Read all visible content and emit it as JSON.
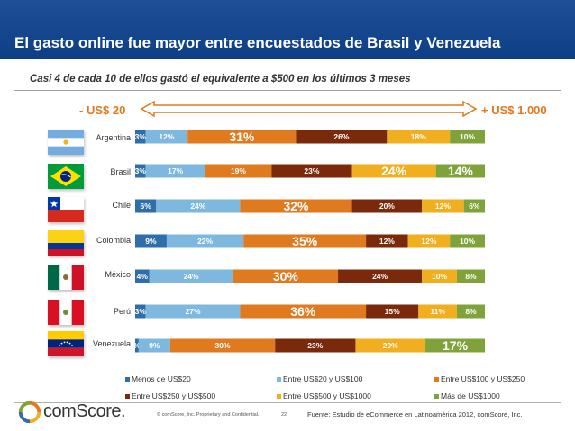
{
  "title": "El gasto online fue mayor entre encuestados de Brasil y Venezuela",
  "subtitle": "Casi 4 de cada 10 de ellos gastó el equivalente a $500 en los últimos 3 meses",
  "range": {
    "left_label": "- US$ 20",
    "right_label": "+ US$ 1.000"
  },
  "colors": {
    "header": "#1a4b93",
    "accent": "#e07a1f",
    "series": [
      "#2f6ea8",
      "#7fb8df",
      "#e07a1f",
      "#7a2a0a",
      "#f1ae1f",
      "#7fa33a"
    ]
  },
  "chart_data": {
    "type": "bar",
    "orientation": "horizontal",
    "stacked": true,
    "percent_scale": true,
    "categories": [
      "Argentina",
      "Brasil",
      "Chile",
      "Colombia",
      "México",
      "Perú",
      "Venezuela"
    ],
    "series": [
      {
        "name": "Menos de US$20",
        "values": [
          3,
          3,
          6,
          9,
          4,
          3,
          1
        ]
      },
      {
        "name": "Entre US$20 y US$100",
        "values": [
          12,
          17,
          24,
          22,
          24,
          27,
          9
        ]
      },
      {
        "name": "Entre US$100 y US$250",
        "values": [
          31,
          19,
          32,
          35,
          30,
          36,
          30
        ]
      },
      {
        "name": "Entre US$250 y US$500",
        "values": [
          26,
          23,
          20,
          12,
          24,
          15,
          23
        ]
      },
      {
        "name": "Entre US$500 y US$1000",
        "values": [
          18,
          24,
          12,
          12,
          10,
          11,
          20
        ]
      },
      {
        "name": "Más de US$1000",
        "values": [
          10,
          14,
          6,
          10,
          8,
          8,
          17
        ]
      }
    ],
    "labels": [
      [
        "3%",
        "12%",
        "31%",
        "26%",
        "18%",
        "10%"
      ],
      [
        "3%",
        "17%",
        "19%",
        "23%",
        "24%",
        "14%"
      ],
      [
        "6%",
        "24%",
        "32%",
        "20%",
        "12%",
        "6%"
      ],
      [
        "9%",
        "22%",
        "35%",
        "12%",
        "12%",
        "10%"
      ],
      [
        "4%",
        "24%",
        "30%",
        "24%",
        "10%",
        "8%"
      ],
      [
        "3%",
        "27%",
        "36%",
        "15%",
        "11%",
        "8%"
      ],
      [
        "%",
        "9%",
        "30%",
        "23%",
        "20%",
        "17%"
      ]
    ],
    "highlight_labels": [
      [
        false,
        false,
        true,
        false,
        false,
        false
      ],
      [
        false,
        false,
        false,
        false,
        true,
        true
      ],
      [
        false,
        false,
        true,
        false,
        false,
        false
      ],
      [
        false,
        false,
        true,
        false,
        false,
        false
      ],
      [
        false,
        false,
        true,
        false,
        false,
        false
      ],
      [
        false,
        false,
        true,
        false,
        false,
        false
      ],
      [
        false,
        false,
        false,
        false,
        false,
        true
      ]
    ],
    "legend_position": "bottom",
    "grid": false
  },
  "footer": {
    "logo_text": "comScore.",
    "copyright": "© comScore, Inc.  Proprietary and Confidential.",
    "page": "22",
    "source": "Fuente: Estudio de eCommerce en Latinoamérica 2012, comScore, Inc."
  }
}
